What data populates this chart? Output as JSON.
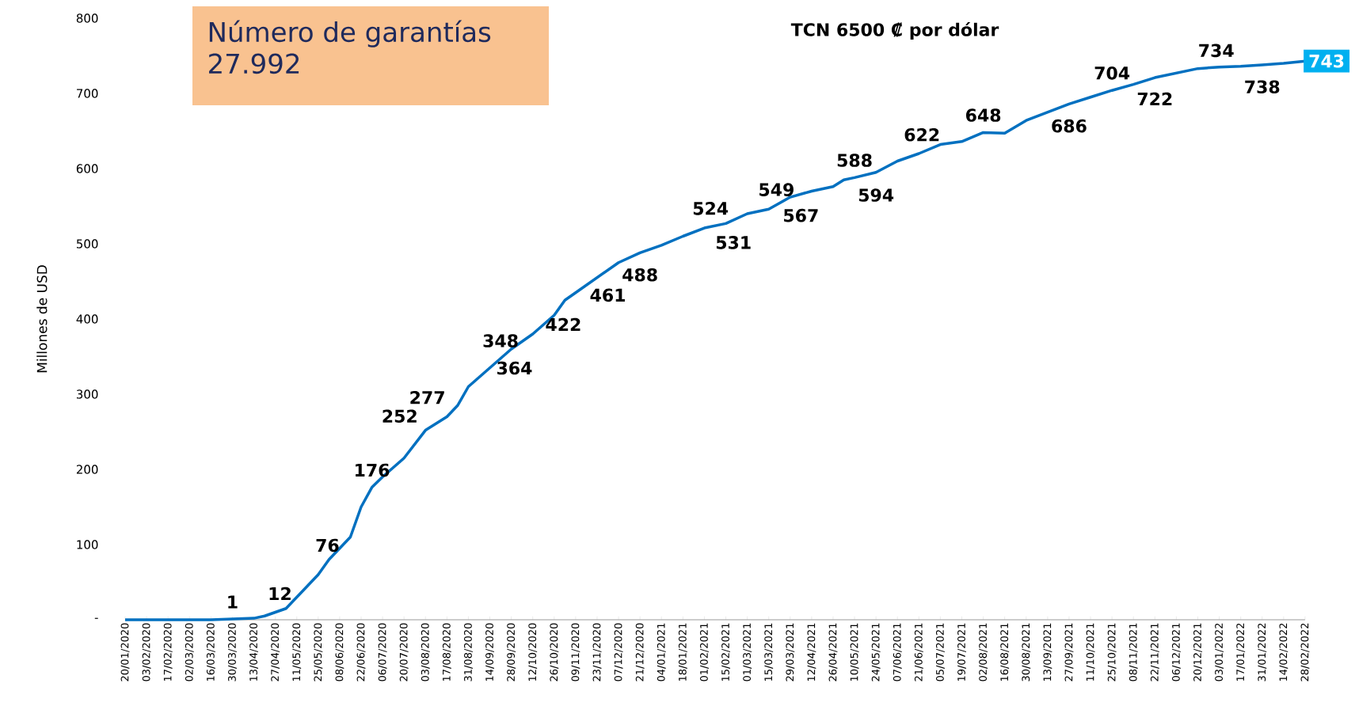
{
  "chart_data": {
    "type": "line",
    "ylabel": "Millones de USD",
    "annotations": [
      "Número de garantías",
      "27.992",
      "TCN 6500 ₡ por dólar",
      {
        "text": "1",
        "x": "2020-03-30",
        "y": 1
      },
      {
        "text": "12",
        "x": "2020-04-30",
        "y": 12
      },
      {
        "text": "76",
        "x": "2020-05-31",
        "y": 76
      },
      {
        "text": "176",
        "x": "2020-06-29",
        "y": 176
      },
      {
        "text": "252",
        "x": "2020-08-03",
        "y": 252
      },
      {
        "text": "277",
        "x": "2020-08-21",
        "y": 277
      },
      {
        "text": "348",
        "x": "2020-09-21",
        "y": 348
      },
      {
        "text": "364",
        "x": "2020-09-30",
        "y": 364
      },
      {
        "text": "422",
        "x": "2020-11-01",
        "y": 422
      },
      {
        "text": "461",
        "x": "2020-11-30",
        "y": 461
      },
      {
        "text": "488",
        "x": "2020-12-21",
        "y": 488
      },
      {
        "text": "524",
        "x": "2021-02-05",
        "y": 524
      },
      {
        "text": "531",
        "x": "2021-02-20",
        "y": 531
      },
      {
        "text": "549",
        "x": "2021-03-20",
        "y": 549
      },
      {
        "text": "567",
        "x": "2021-04-05",
        "y": 567
      },
      {
        "text": "588",
        "x": "2021-05-10",
        "y": 588
      },
      {
        "text": "594",
        "x": "2021-05-24",
        "y": 594
      },
      {
        "text": "622",
        "x": "2021-06-23",
        "y": 622
      },
      {
        "text": "648",
        "x": "2021-08-02",
        "y": 648
      },
      {
        "text": "686",
        "x": "2021-09-27",
        "y": 686
      },
      {
        "text": "704",
        "x": "2021-10-25",
        "y": 704
      },
      {
        "text": "722",
        "x": "2021-11-22",
        "y": 722
      },
      {
        "text": "734",
        "x": "2022-01-01",
        "y": 734
      },
      {
        "text": "738",
        "x": "2022-01-31",
        "y": 738
      },
      {
        "text": "743",
        "x": "2022-02-28",
        "y": 743
      }
    ],
    "xlim": [
      "2020-01-20",
      "2022-02-28"
    ],
    "ylim": [
      0,
      800
    ],
    "yticks": [
      {
        "value": 0,
        "label": "-"
      },
      100,
      200,
      300,
      400,
      500,
      600,
      700,
      800
    ],
    "xticks": [
      {
        "value": "2020-01-20",
        "label": "20/01/2020"
      },
      {
        "value": "2020-02-03",
        "label": "03/02/2020"
      },
      {
        "value": "2020-02-17",
        "label": "17/02/2020"
      },
      {
        "value": "2020-03-02",
        "label": "02/03/2020"
      },
      {
        "value": "2020-03-16",
        "label": "16/03/2020"
      },
      {
        "value": "2020-03-30",
        "label": "30/03/2020"
      },
      {
        "value": "2020-04-13",
        "label": "13/04/2020"
      },
      {
        "value": "2020-04-27",
        "label": "27/04/2020"
      },
      {
        "value": "2020-05-11",
        "label": "11/05/2020"
      },
      {
        "value": "2020-05-25",
        "label": "25/05/2020"
      },
      {
        "value": "2020-06-08",
        "label": "08/06/2020"
      },
      {
        "value": "2020-06-22",
        "label": "22/06/2020"
      },
      {
        "value": "2020-07-06",
        "label": "06/07/2020"
      },
      {
        "value": "2020-07-20",
        "label": "20/07/2020"
      },
      {
        "value": "2020-08-03",
        "label": "03/08/2020"
      },
      {
        "value": "2020-08-17",
        "label": "17/08/2020"
      },
      {
        "value": "2020-08-31",
        "label": "31/08/2020"
      },
      {
        "value": "2020-09-14",
        "label": "14/09/2020"
      },
      {
        "value": "2020-09-28",
        "label": "28/09/2020"
      },
      {
        "value": "2020-10-12",
        "label": "12/10/2020"
      },
      {
        "value": "2020-10-26",
        "label": "26/10/2020"
      },
      {
        "value": "2020-11-09",
        "label": "09/11/2020"
      },
      {
        "value": "2020-11-23",
        "label": "23/11/2020"
      },
      {
        "value": "2020-12-07",
        "label": "07/12/2020"
      },
      {
        "value": "2020-12-21",
        "label": "21/12/2020"
      },
      {
        "value": "2021-01-04",
        "label": "04/01/2021"
      },
      {
        "value": "2021-01-18",
        "label": "18/01/2021"
      },
      {
        "value": "2021-02-01",
        "label": "01/02/2021"
      },
      {
        "value": "2021-02-15",
        "label": "15/02/2021"
      },
      {
        "value": "2021-03-01",
        "label": "01/03/2021"
      },
      {
        "value": "2021-03-15",
        "label": "15/03/2021"
      },
      {
        "value": "2021-03-29",
        "label": "29/03/2021"
      },
      {
        "value": "2021-04-12",
        "label": "12/04/2021"
      },
      {
        "value": "2021-04-26",
        "label": "26/04/2021"
      },
      {
        "value": "2021-05-10",
        "label": "10/05/2021"
      },
      {
        "value": "2021-05-24",
        "label": "24/05/2021"
      },
      {
        "value": "2021-06-07",
        "label": "07/06/2021"
      },
      {
        "value": "2021-06-21",
        "label": "21/06/2021"
      },
      {
        "value": "2021-07-05",
        "label": "05/07/2021"
      },
      {
        "value": "2021-07-19",
        "label": "19/07/2021"
      },
      {
        "value": "2021-08-02",
        "label": "02/08/2021"
      },
      {
        "value": "2021-08-16",
        "label": "16/08/2021"
      },
      {
        "value": "2021-08-30",
        "label": "30/08/2021"
      },
      {
        "value": "2021-09-13",
        "label": "13/09/2021"
      },
      {
        "value": "2021-09-27",
        "label": "27/09/2021"
      },
      {
        "value": "2021-10-11",
        "label": "11/10/2021"
      },
      {
        "value": "2021-10-25",
        "label": "25/10/2021"
      },
      {
        "value": "2021-11-08",
        "label": "08/11/2021"
      },
      {
        "value": "2021-11-22",
        "label": "22/11/2021"
      },
      {
        "value": "2021-12-06",
        "label": "06/12/2021"
      },
      {
        "value": "2021-12-20",
        "label": "20/12/2021"
      },
      {
        "value": "2022-01-03",
        "label": "03/01/2022"
      },
      {
        "value": "2022-01-17",
        "label": "17/01/2022"
      },
      {
        "value": "2022-01-31",
        "label": "31/01/2022"
      },
      {
        "value": "2022-02-14",
        "label": "14/02/2022"
      },
      {
        "value": "2022-02-28",
        "label": "28/02/2022"
      }
    ],
    "series": [
      {
        "color": "#0070c0",
        "x": [
          "2020-01-20",
          "2020-03-16",
          "2020-03-30",
          "2020-04-13",
          "2020-04-20",
          "2020-04-27",
          "2020-05-04",
          "2020-05-11",
          "2020-05-18",
          "2020-05-25",
          "2020-06-01",
          "2020-06-08",
          "2020-06-15",
          "2020-06-22",
          "2020-06-29",
          "2020-07-06",
          "2020-07-20",
          "2020-08-03",
          "2020-08-17",
          "2020-08-24",
          "2020-08-31",
          "2020-09-14",
          "2020-09-28",
          "2020-10-12",
          "2020-10-26",
          "2020-11-02",
          "2020-11-09",
          "2020-11-23",
          "2020-12-07",
          "2020-12-21",
          "2021-01-04",
          "2021-01-18",
          "2021-02-01",
          "2021-02-15",
          "2021-03-01",
          "2021-03-15",
          "2021-03-29",
          "2021-04-12",
          "2021-04-26",
          "2021-05-03",
          "2021-05-10",
          "2021-05-24",
          "2021-06-07",
          "2021-06-21",
          "2021-07-05",
          "2021-07-19",
          "2021-08-02",
          "2021-08-16",
          "2021-08-30",
          "2021-09-13",
          "2021-09-27",
          "2021-10-11",
          "2021-10-25",
          "2021-11-08",
          "2021-11-22",
          "2021-12-06",
          "2021-12-20",
          "2022-01-03",
          "2022-01-17",
          "2022-01-31",
          "2022-02-14",
          "2022-02-28"
        ],
        "values": [
          0,
          0,
          1,
          2,
          5,
          10,
          15,
          30,
          45,
          60,
          80,
          95,
          110,
          150,
          176,
          190,
          215,
          252,
          270,
          285,
          310,
          335,
          360,
          380,
          405,
          425,
          435,
          455,
          475,
          488,
          498,
          510,
          521,
          527,
          540,
          546,
          562,
          570,
          576,
          585,
          588,
          595,
          610,
          620,
          632,
          636,
          648,
          647,
          664,
          675,
          686,
          695,
          704,
          712,
          721,
          727,
          733,
          735,
          736,
          738,
          740,
          743
        ]
      }
    ]
  }
}
